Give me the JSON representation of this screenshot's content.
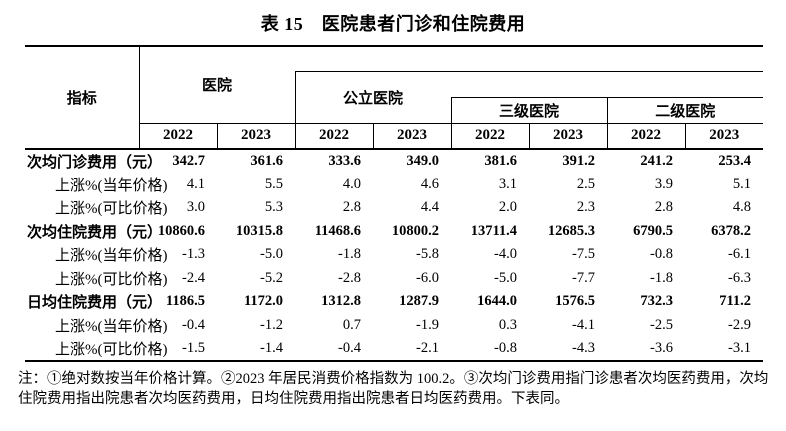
{
  "title": "表 15　医院患者门诊和住院费用",
  "table": {
    "indicator_header": "指标",
    "column_groups": {
      "hospital": "医院",
      "public": "公立医院",
      "tertiary": "三级医院",
      "secondary": "二级医院"
    },
    "year_headers": [
      "2022",
      "2023",
      "2022",
      "2023",
      "2022",
      "2023",
      "2022",
      "2023"
    ],
    "rows": [
      {
        "label": "次均门诊费用（元）",
        "emphasis": true,
        "values": [
          "342.7",
          "361.6",
          "333.6",
          "349.0",
          "381.6",
          "391.2",
          "241.2",
          "253.4"
        ]
      },
      {
        "label": "上涨%(当年价格)",
        "emphasis": false,
        "values": [
          "4.1",
          "5.5",
          "4.0",
          "4.6",
          "3.1",
          "2.5",
          "3.9",
          "5.1"
        ]
      },
      {
        "label": "上涨%(可比价格)",
        "emphasis": false,
        "values": [
          "3.0",
          "5.3",
          "2.8",
          "4.4",
          "2.0",
          "2.3",
          "2.8",
          "4.8"
        ]
      },
      {
        "label": "次均住院费用（元）",
        "emphasis": true,
        "values": [
          "10860.6",
          "10315.8",
          "11468.6",
          "10800.2",
          "13711.4",
          "12685.3",
          "6790.5",
          "6378.2"
        ]
      },
      {
        "label": "上涨%(当年价格)",
        "emphasis": false,
        "values": [
          "-1.3",
          "-5.0",
          "-1.8",
          "-5.8",
          "-4.0",
          "-7.5",
          "-0.8",
          "-6.1"
        ]
      },
      {
        "label": "上涨%(可比价格)",
        "emphasis": false,
        "values": [
          "-2.4",
          "-5.2",
          "-2.8",
          "-6.0",
          "-5.0",
          "-7.7",
          "-1.8",
          "-6.3"
        ]
      },
      {
        "label": "日均住院费用（元）",
        "emphasis": true,
        "values": [
          "1186.5",
          "1172.0",
          "1312.8",
          "1287.9",
          "1644.0",
          "1576.5",
          "732.3",
          "711.2"
        ]
      },
      {
        "label": "上涨%(当年价格)",
        "emphasis": false,
        "values": [
          "-0.4",
          "-1.2",
          "0.7",
          "-1.9",
          "0.3",
          "-4.1",
          "-2.5",
          "-2.9"
        ]
      },
      {
        "label": "上涨%(可比价格)",
        "emphasis": false,
        "values": [
          "-1.5",
          "-1.4",
          "-0.4",
          "-2.1",
          "-0.8",
          "-4.3",
          "-3.6",
          "-3.1"
        ]
      }
    ]
  },
  "footnote": "注：①绝对数按当年价格计算。②2023 年居民消费价格指数为 100.2。③次均门诊费用指门诊患者次均医药费用，次均住院费用指出院患者次均医药费用，日均住院费用指出院患者日均医药费用。下表同。",
  "colors": {
    "text": "#000000",
    "background": "#ffffff",
    "border": "#000000"
  }
}
